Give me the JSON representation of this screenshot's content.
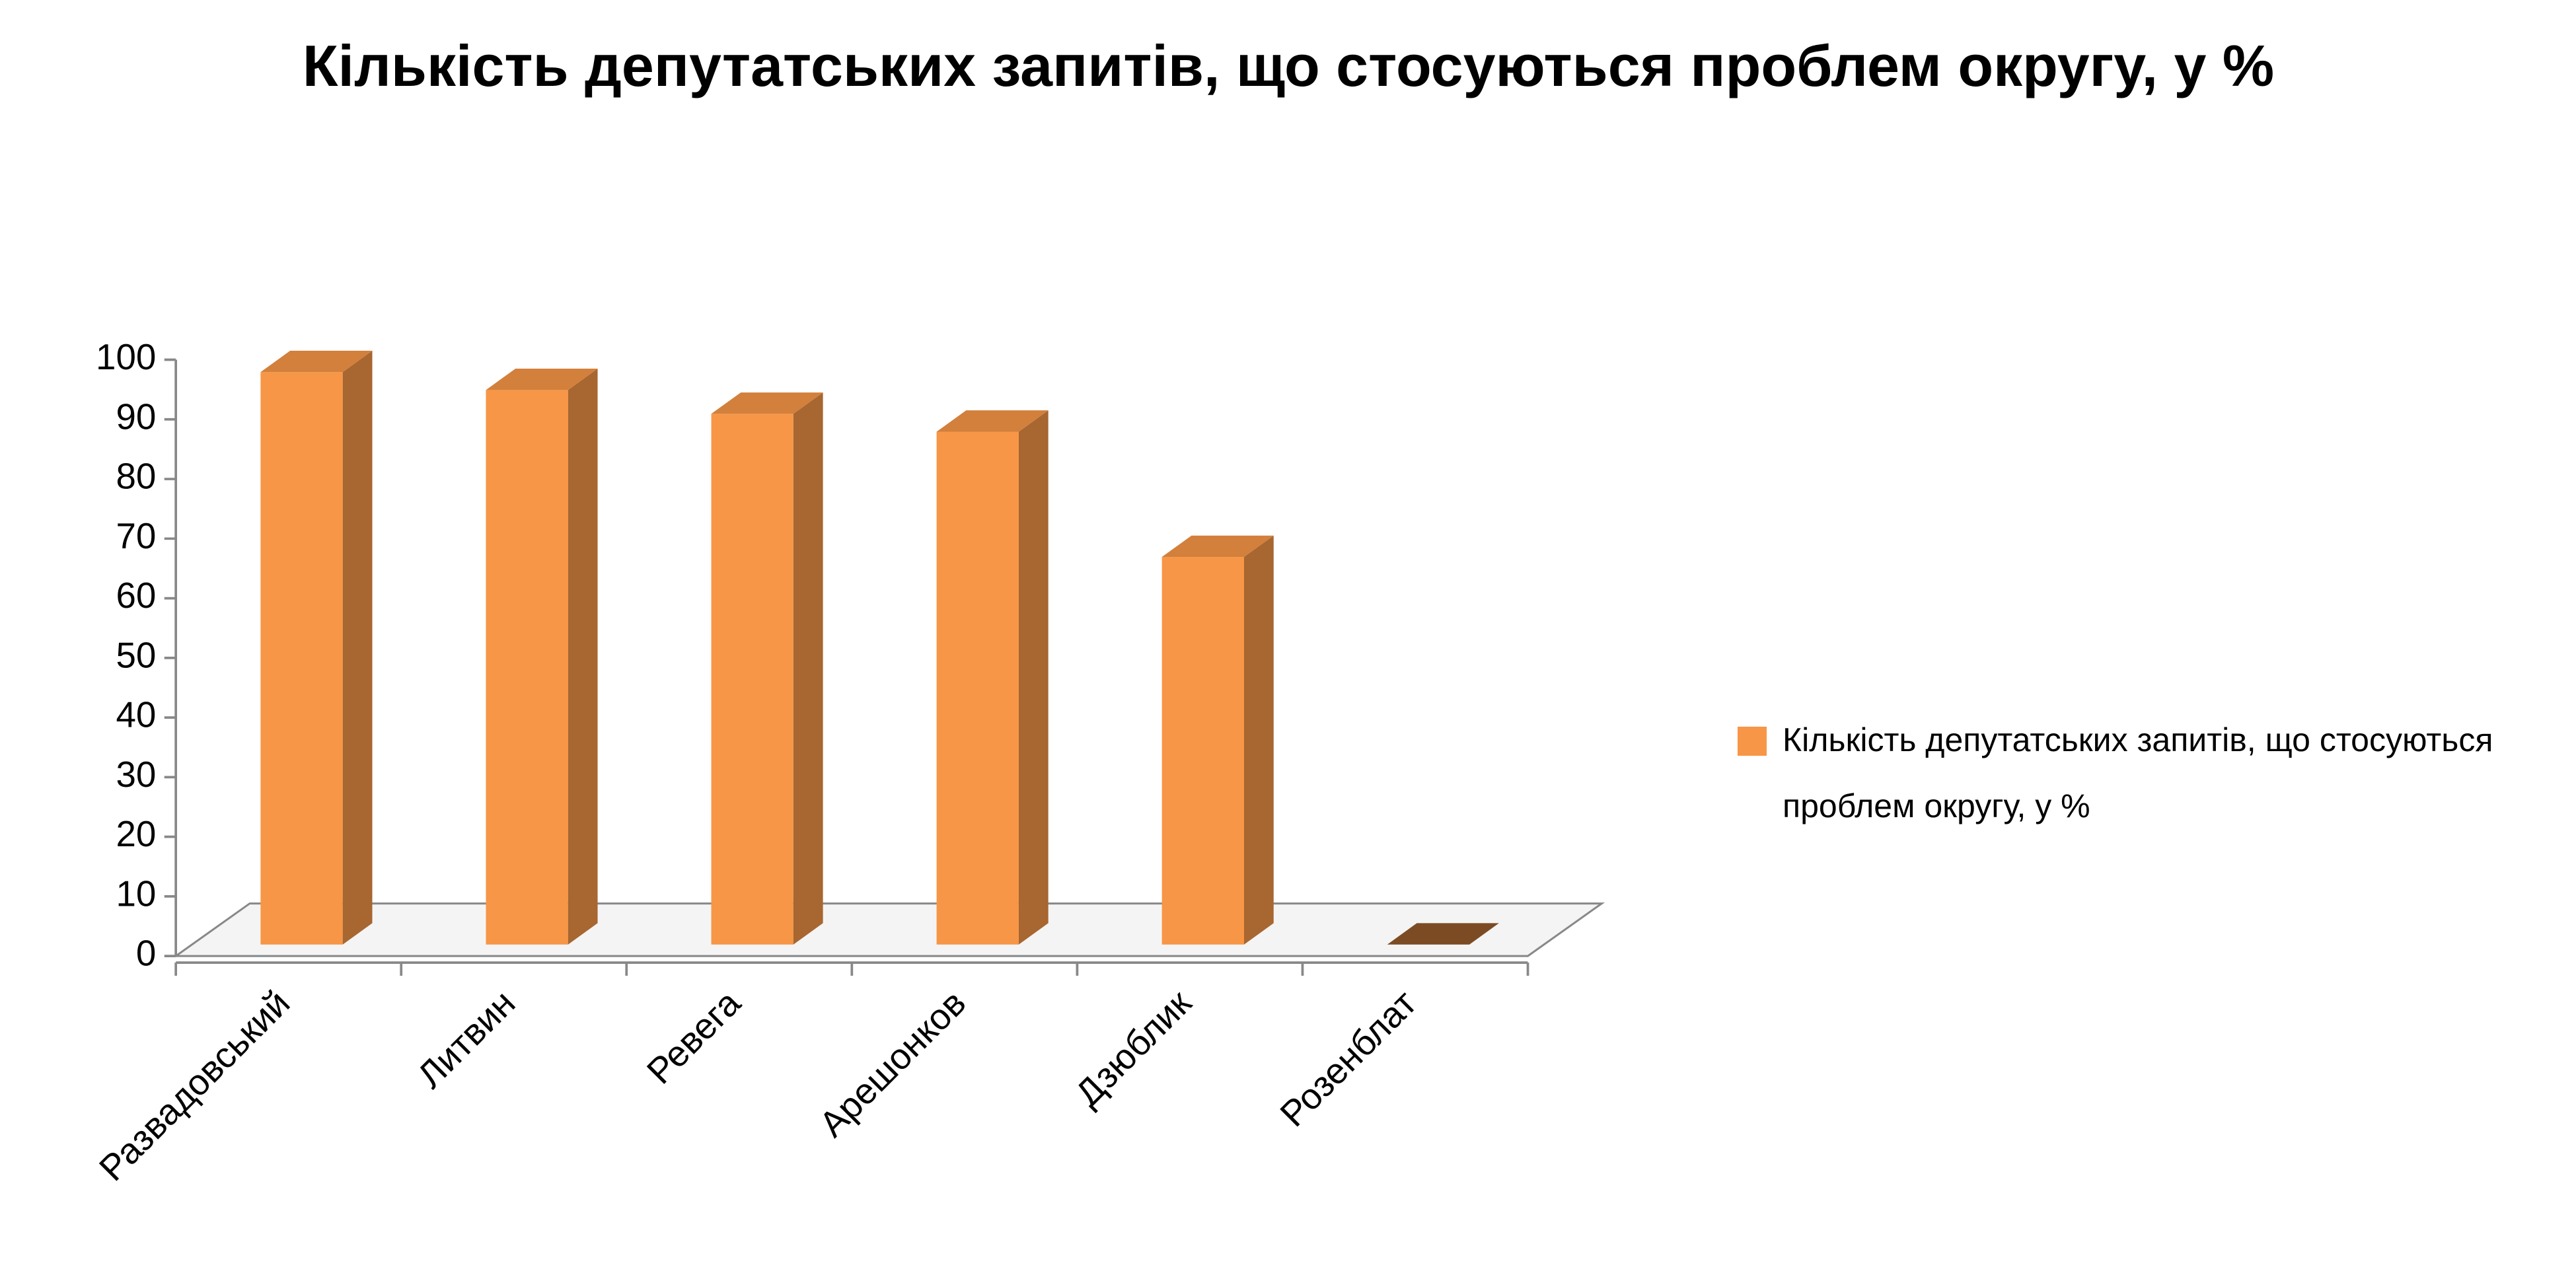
{
  "chart_data": {
    "type": "bar3d",
    "title": "Кількість депутатських запитів, що стосуються проблем округу, у %",
    "categories": [
      "Развадовський",
      "Литвин",
      "Ревега",
      "Арешонков",
      "Дзюблик",
      "Розенблат"
    ],
    "series": [
      {
        "name": "Кількість депутатських запитів, що стосуються проблем округу, у %",
        "color": "#f79646",
        "values": [
          96,
          93,
          89,
          86,
          65,
          0
        ]
      }
    ],
    "ylim": [
      0,
      100
    ],
    "yticks": [
      0,
      10,
      20,
      30,
      40,
      50,
      60,
      70,
      80,
      90,
      100
    ],
    "legend": "right"
  }
}
